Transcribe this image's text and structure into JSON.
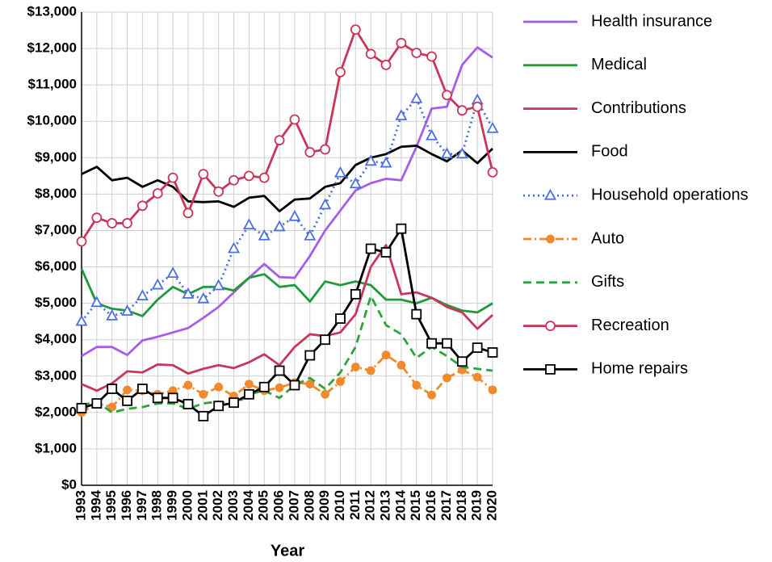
{
  "chart_data": {
    "type": "line",
    "x_label": "Year",
    "categories": [
      "1993",
      "1994",
      "1995",
      "1996",
      "1997",
      "1998",
      "1999",
      "2000",
      "2001",
      "2002",
      "2003",
      "2004",
      "2005",
      "2006",
      "2007",
      "2008",
      "2009",
      "2010",
      "2011",
      "2012",
      "2013",
      "2014",
      "2015",
      "2016",
      "2017",
      "2018",
      "2019",
      "2020"
    ],
    "ylim": [
      0,
      13000
    ],
    "yticks": [
      {
        "value": 0,
        "label": "$0"
      },
      {
        "value": 1000,
        "label": "$1,000"
      },
      {
        "value": 2000,
        "label": "$2,000"
      },
      {
        "value": 3000,
        "label": "$3,000"
      },
      {
        "value": 4000,
        "label": "$4,000"
      },
      {
        "value": 5000,
        "label": "$5,000"
      },
      {
        "value": 6000,
        "label": "$6,000"
      },
      {
        "value": 7000,
        "label": "$7,000"
      },
      {
        "value": 8000,
        "label": "$8,000"
      },
      {
        "value": 9000,
        "label": "$9,000"
      },
      {
        "value": 10000,
        "label": "$10,000"
      },
      {
        "value": 11000,
        "label": "$11,000"
      },
      {
        "value": 12000,
        "label": "$12,000"
      },
      {
        "value": 13000,
        "label": "$13,000"
      }
    ],
    "grid": true,
    "legend": "right",
    "series": [
      {
        "name": "Health insurance",
        "color": "#a55ee8",
        "dash": "solid",
        "marker": "none",
        "values": [
          3550,
          3800,
          3800,
          3580,
          3980,
          4080,
          4200,
          4320,
          4600,
          4900,
          5300,
          5700,
          6080,
          5720,
          5700,
          6300,
          7000,
          7550,
          8100,
          8300,
          8420,
          8380,
          9300,
          10350,
          10400,
          11550,
          12030,
          11750
        ]
      },
      {
        "name": "Medical",
        "color": "#1f9a3a",
        "dash": "solid",
        "marker": "none",
        "values": [
          5950,
          5000,
          4850,
          4800,
          4650,
          5100,
          5450,
          5250,
          5450,
          5450,
          5350,
          5700,
          5800,
          5450,
          5500,
          5050,
          5600,
          5500,
          5600,
          5500,
          5100,
          5100,
          5000,
          5150,
          4950,
          4800,
          4750,
          5000
        ]
      },
      {
        "name": "Contributions",
        "color": "#c8375a",
        "dash": "solid",
        "marker": "none",
        "values": [
          2780,
          2600,
          2800,
          3130,
          3100,
          3320,
          3300,
          3070,
          3200,
          3300,
          3220,
          3380,
          3600,
          3300,
          3800,
          4150,
          4100,
          4200,
          4700,
          6000,
          6600,
          5250,
          5300,
          5150,
          4900,
          4750,
          4300,
          4680
        ]
      },
      {
        "name": "Food",
        "color": "#000000",
        "dash": "solid",
        "marker": "none",
        "values": [
          8550,
          8750,
          8380,
          8450,
          8200,
          8380,
          8200,
          7800,
          7780,
          7800,
          7650,
          7900,
          7950,
          7530,
          7850,
          7880,
          8200,
          8300,
          8800,
          9000,
          9100,
          9300,
          9330,
          9100,
          8900,
          9200,
          8850,
          9250
        ]
      },
      {
        "name": "Household operations",
        "color": "#4a6fe0",
        "dash": "dotted",
        "marker": "triangle",
        "values": [
          4500,
          5020,
          4650,
          4780,
          5200,
          5500,
          5820,
          5250,
          5120,
          5480,
          6500,
          7150,
          6850,
          7100,
          7380,
          6850,
          7700,
          8580,
          8280,
          8900,
          8850,
          10150,
          10620,
          9600,
          9100,
          9100,
          10580,
          9800
        ]
      },
      {
        "name": "Auto",
        "color": "#f08a2c",
        "dash": "dashdot",
        "marker": "dot",
        "values": [
          2000,
          2250,
          2150,
          2620,
          2600,
          2500,
          2600,
          2750,
          2500,
          2700,
          2450,
          2780,
          2600,
          2680,
          2820,
          2780,
          2500,
          2850,
          3250,
          3150,
          3580,
          3300,
          2750,
          2480,
          2950,
          3170,
          2970,
          2620
        ]
      },
      {
        "name": "Gifts",
        "color": "#2ca43c",
        "dash": "dashed",
        "marker": "none",
        "values": [
          2200,
          2300,
          2000,
          2100,
          2150,
          2250,
          2250,
          2100,
          2250,
          2300,
          2200,
          2500,
          2600,
          2400,
          2750,
          2950,
          2650,
          3100,
          3800,
          5200,
          4400,
          4150,
          3500,
          3800,
          3550,
          3250,
          3200,
          3150
        ]
      },
      {
        "name": "Recreation",
        "color": "#c8375a",
        "dash": "solid",
        "marker": "circle",
        "values": [
          6700,
          7350,
          7200,
          7200,
          7680,
          8020,
          8450,
          7480,
          8550,
          8070,
          8380,
          8500,
          8450,
          9480,
          10050,
          9150,
          9230,
          11350,
          12520,
          11850,
          11550,
          12150,
          11880,
          11780,
          10720,
          10300,
          10400,
          8600
        ]
      },
      {
        "name": "Home repairs",
        "color": "#000000",
        "dash": "solid",
        "marker": "square",
        "values": [
          2120,
          2250,
          2650,
          2320,
          2650,
          2400,
          2400,
          2230,
          1900,
          2180,
          2270,
          2500,
          2700,
          3150,
          2750,
          3570,
          4000,
          4580,
          5250,
          6500,
          6400,
          7050,
          4700,
          3900,
          3900,
          3400,
          3780,
          3650
        ]
      }
    ]
  }
}
